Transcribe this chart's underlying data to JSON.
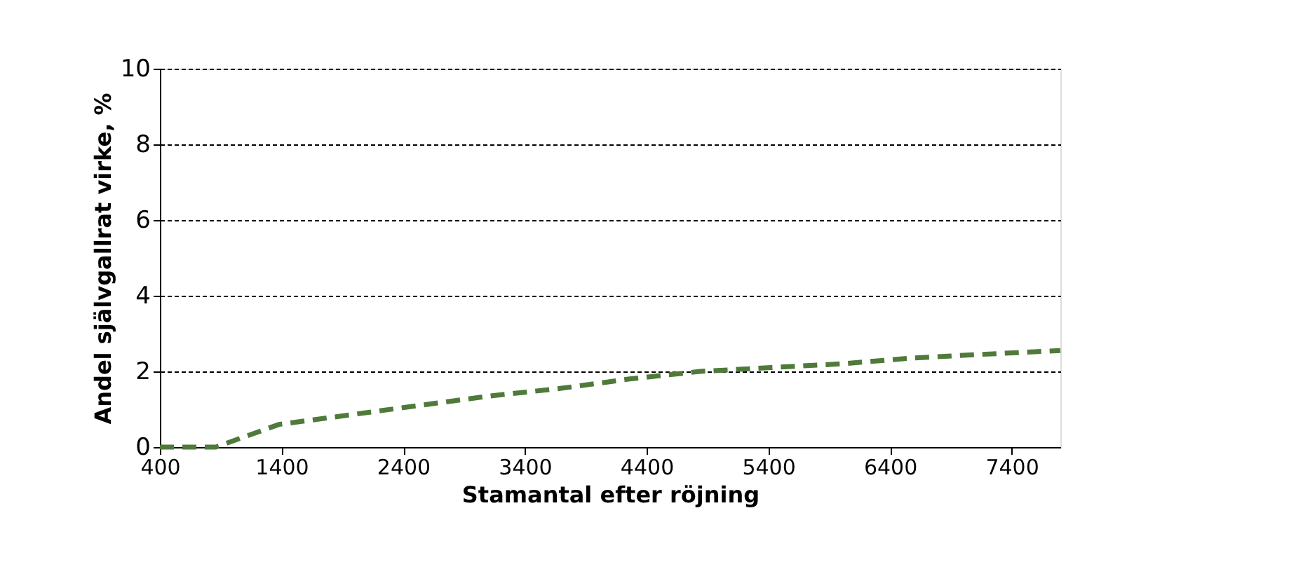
{
  "chart_data": {
    "type": "line",
    "xlabel": "Stamantal efter röjning",
    "ylabel": "Andel självgallrat virke, %",
    "x": [
      400,
      860,
      1380,
      1960,
      2530,
      3110,
      3690,
      4260,
      4840,
      5420,
      6000,
      6570,
      7150,
      7800
    ],
    "series": [
      {
        "color": "#4f7a3a",
        "values": [
          0,
          0,
          0.6,
          0.85,
          1.1,
          1.35,
          1.55,
          1.8,
          2.0,
          2.1,
          2.2,
          2.35,
          2.45,
          2.55
        ]
      }
    ],
    "xlim": [
      400,
      7800
    ],
    "xticks": [
      400,
      1400,
      2400,
      3400,
      4400,
      5400,
      6400,
      7400
    ],
    "ylim": [
      0,
      10
    ],
    "yticks": [
      0,
      2,
      4,
      6,
      8,
      10
    ],
    "grid": "y",
    "marker": "none",
    "line_style": "dashed"
  }
}
